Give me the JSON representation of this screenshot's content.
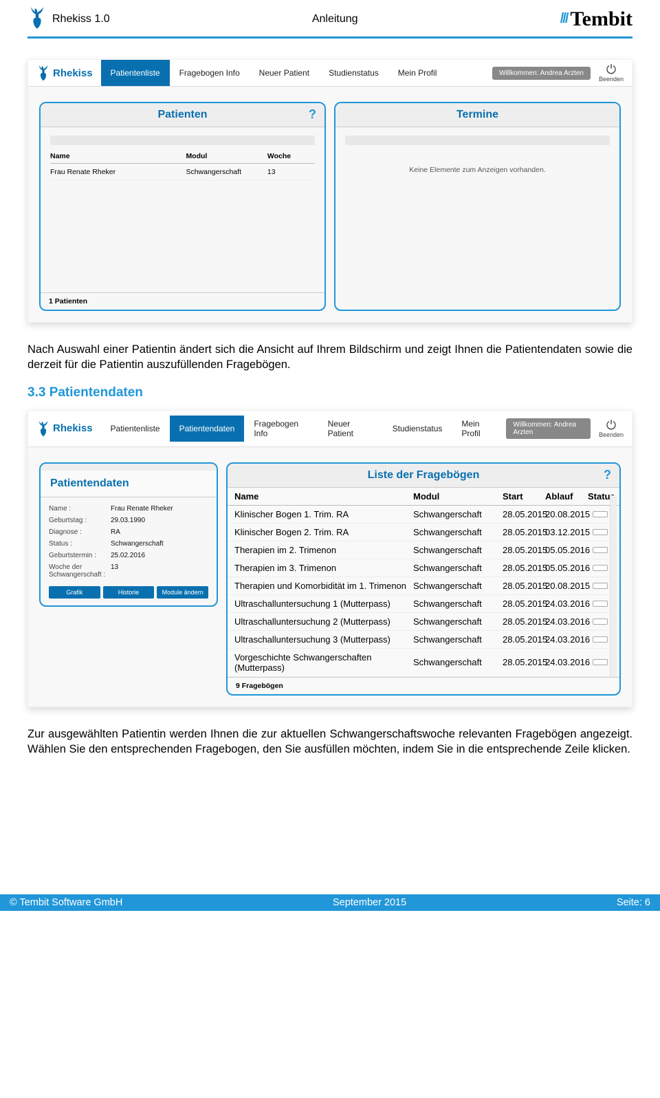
{
  "doc": {
    "left_title": "Rhekiss 1.0",
    "center_title": "Anleitung",
    "tembit": "Tembit"
  },
  "app": {
    "logo_text": "Rhekiss",
    "nav": [
      "Patientenliste",
      "Fragebogen Info",
      "Neuer Patient",
      "Studienstatus",
      "Mein Profil"
    ],
    "welcome": "Willkommen: Andrea Arzten",
    "exit": "Beenden"
  },
  "s1": {
    "panelA": {
      "title": "Patienten",
      "cols": [
        "Name",
        "Modul",
        "Woche"
      ],
      "row": [
        "Frau Renate Rheker",
        "Schwangerschaft",
        "13"
      ],
      "foot": "1 Patienten"
    },
    "panelB": {
      "title": "Termine",
      "empty": "Keine Elemente zum Anzeigen vorhanden."
    }
  },
  "para1": "Nach Auswahl einer Patientin ändert sich die Ansicht auf Ihrem Bildschirm und zeigt Ihnen die Patientendaten sowie die derzeit für die Patientin auszufüllenden Fragebögen.",
  "sec33": "3.3   Patientendaten",
  "s2": {
    "nav2": [
      "Patientenliste",
      "Patientendaten",
      "Fragebogen Info",
      "Neuer Patient",
      "Studienstatus",
      "Mein Profil"
    ],
    "patient": {
      "title": "Patientendaten",
      "kv": [
        [
          "Name :",
          "Frau Renate Rheker"
        ],
        [
          "Geburtstag :",
          "29.03.1990"
        ],
        [
          "Diagnose :",
          "RA"
        ],
        [
          "Status :",
          "Schwangerschaft"
        ],
        [
          "Geburtstermin :",
          "25.02.2016"
        ],
        [
          "Woche der Schwangerschaft :",
          "13"
        ]
      ],
      "buttons": [
        "Grafik",
        "Historie",
        "Module ändern"
      ]
    },
    "fragTitle": "Liste der Fragebögen",
    "fragCols": [
      "Name",
      "Modul",
      "Start",
      "Ablauf",
      "Status"
    ],
    "fragRows": [
      [
        "Klinischer Bogen 1. Trim. RA",
        "Schwangerschaft",
        "28.05.2015",
        "20.08.2015"
      ],
      [
        "Klinischer Bogen 2. Trim. RA",
        "Schwangerschaft",
        "28.05.2015",
        "03.12.2015"
      ],
      [
        "Therapien im 2. Trimenon",
        "Schwangerschaft",
        "28.05.2015",
        "05.05.2016"
      ],
      [
        "Therapien im 3. Trimenon",
        "Schwangerschaft",
        "28.05.2015",
        "05.05.2016"
      ],
      [
        "Therapien und Komorbidität im 1. Trimenon",
        "Schwangerschaft",
        "28.05.2015",
        "20.08.2015"
      ],
      [
        "Ultraschalluntersuchung 1 (Mutterpass)",
        "Schwangerschaft",
        "28.05.2015",
        "24.03.2016"
      ],
      [
        "Ultraschalluntersuchung 2 (Mutterpass)",
        "Schwangerschaft",
        "28.05.2015",
        "24.03.2016"
      ],
      [
        "Ultraschalluntersuchung 3 (Mutterpass)",
        "Schwangerschaft",
        "28.05.2015",
        "24.03.2016"
      ],
      [
        "Vorgeschichte Schwangerschaften (Mutterpass)",
        "Schwangerschaft",
        "28.05.2015",
        "24.03.2016"
      ]
    ],
    "fragFoot": "9 Fragebögen"
  },
  "para2": "Zur ausgewählten Patientin werden Ihnen die zur aktuellen Schwangerschaftswoche relevanten Fragebögen angezeigt. Wählen Sie den entsprechenden Fragebogen, den Sie ausfüllen möchten, indem Sie in die entsprechende Zeile klicken.",
  "footer": {
    "left": "© Tembit Software GmbH",
    "center": "September 2015",
    "right": "Seite: 6"
  }
}
